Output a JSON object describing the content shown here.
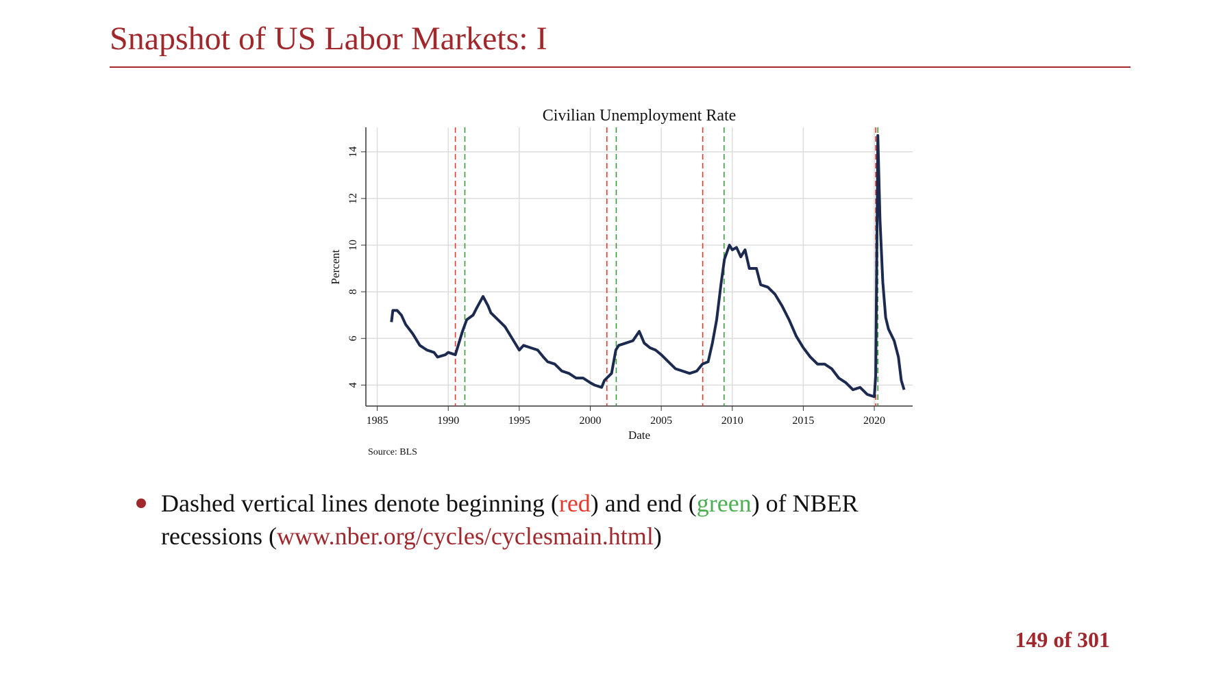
{
  "title": "Snapshot of US Labor Markets: I",
  "chart_data": {
    "type": "line",
    "title": "Civilian Unemployment Rate",
    "x_label": "Date",
    "y_label": "Percent",
    "source": "Source: BLS",
    "xlim": [
      1984.2,
      2022.7
    ],
    "ylim": [
      3.1,
      15.05
    ],
    "xticks": [
      1985,
      1990,
      1995,
      2000,
      2005,
      2010,
      2015,
      2020
    ],
    "yticks": [
      4,
      6,
      8,
      10,
      12,
      14
    ],
    "grid": true,
    "series": [
      {
        "name": "Unemployment rate",
        "color": "#1c2a4f",
        "x": [
          1986.0,
          1986.1,
          1986.4,
          1986.7,
          1987.0,
          1987.5,
          1988.0,
          1988.5,
          1989.0,
          1989.25,
          1989.8,
          1990.0,
          1990.5,
          1990.75,
          1991.0,
          1991.3,
          1991.75,
          1992.0,
          1992.45,
          1992.8,
          1993.0,
          1993.5,
          1994.0,
          1994.5,
          1995.0,
          1995.3,
          1995.8,
          1996.3,
          1996.7,
          1997.0,
          1997.5,
          1998.0,
          1998.5,
          1999.0,
          1999.5,
          2000.0,
          2000.3,
          2000.8,
          2001.0,
          2001.5,
          2001.8,
          2002.0,
          2002.5,
          2003.0,
          2003.45,
          2003.8,
          2004.2,
          2004.6,
          2005.0,
          2005.5,
          2006.0,
          2006.5,
          2007.0,
          2007.5,
          2007.9,
          2008.3,
          2008.6,
          2008.9,
          2009.2,
          2009.45,
          2009.8,
          2010.0,
          2010.3,
          2010.6,
          2010.9,
          2011.2,
          2011.7,
          2012.0,
          2012.5,
          2013.0,
          2013.5,
          2014.0,
          2014.5,
          2015.0,
          2015.5,
          2016.0,
          2016.5,
          2017.0,
          2017.5,
          2018.0,
          2018.5,
          2019.0,
          2019.5,
          2020.0,
          2020.1,
          2020.25,
          2020.4,
          2020.6,
          2020.8,
          2021.0,
          2021.4,
          2021.7,
          2021.9,
          2022.1
        ],
        "values": [
          6.7,
          7.2,
          7.2,
          7.0,
          6.6,
          6.2,
          5.7,
          5.5,
          5.4,
          5.2,
          5.3,
          5.4,
          5.3,
          5.8,
          6.3,
          6.8,
          7.0,
          7.3,
          7.8,
          7.4,
          7.1,
          6.8,
          6.5,
          6.0,
          5.5,
          5.7,
          5.6,
          5.5,
          5.2,
          5.0,
          4.9,
          4.6,
          4.5,
          4.3,
          4.3,
          4.1,
          4.0,
          3.9,
          4.2,
          4.5,
          5.5,
          5.7,
          5.8,
          5.9,
          6.3,
          5.8,
          5.6,
          5.5,
          5.3,
          5.0,
          4.7,
          4.6,
          4.5,
          4.6,
          4.9,
          5.0,
          5.8,
          6.8,
          8.3,
          9.4,
          10.0,
          9.8,
          9.9,
          9.5,
          9.8,
          9.0,
          9.0,
          8.3,
          8.2,
          7.9,
          7.4,
          6.8,
          6.1,
          5.6,
          5.2,
          4.9,
          4.9,
          4.7,
          4.3,
          4.1,
          3.8,
          3.9,
          3.6,
          3.5,
          4.4,
          14.7,
          11.1,
          8.4,
          6.9,
          6.4,
          5.9,
          5.2,
          4.2,
          3.8
        ]
      }
    ],
    "recessions": {
      "starts": [
        1990.5,
        2001.17,
        2007.92,
        2020.1
      ],
      "ends": [
        1991.17,
        2001.83,
        2009.42,
        2020.25
      ],
      "start_color": "#e8392a",
      "end_color": "#3a9a3a"
    }
  },
  "bullet": {
    "lines": [
      [
        {
          "text": "Dashed vertical lines denote beginning (",
          "color": "#111111"
        },
        {
          "text": "red",
          "color": "#e8392a"
        },
        {
          "text": ") and end (",
          "color": "#111111"
        },
        {
          "text": "green",
          "color": "#4caf50"
        },
        {
          "text": ") of NBER",
          "color": "#111111"
        }
      ],
      [
        {
          "text": "recessions (",
          "color": "#111111"
        },
        {
          "text": "www.nber.org/cycles/cyclesmain.html",
          "color": "#a0282d"
        },
        {
          "text": ")",
          "color": "#111111"
        }
      ]
    ]
  },
  "page_number": "149 of 301"
}
